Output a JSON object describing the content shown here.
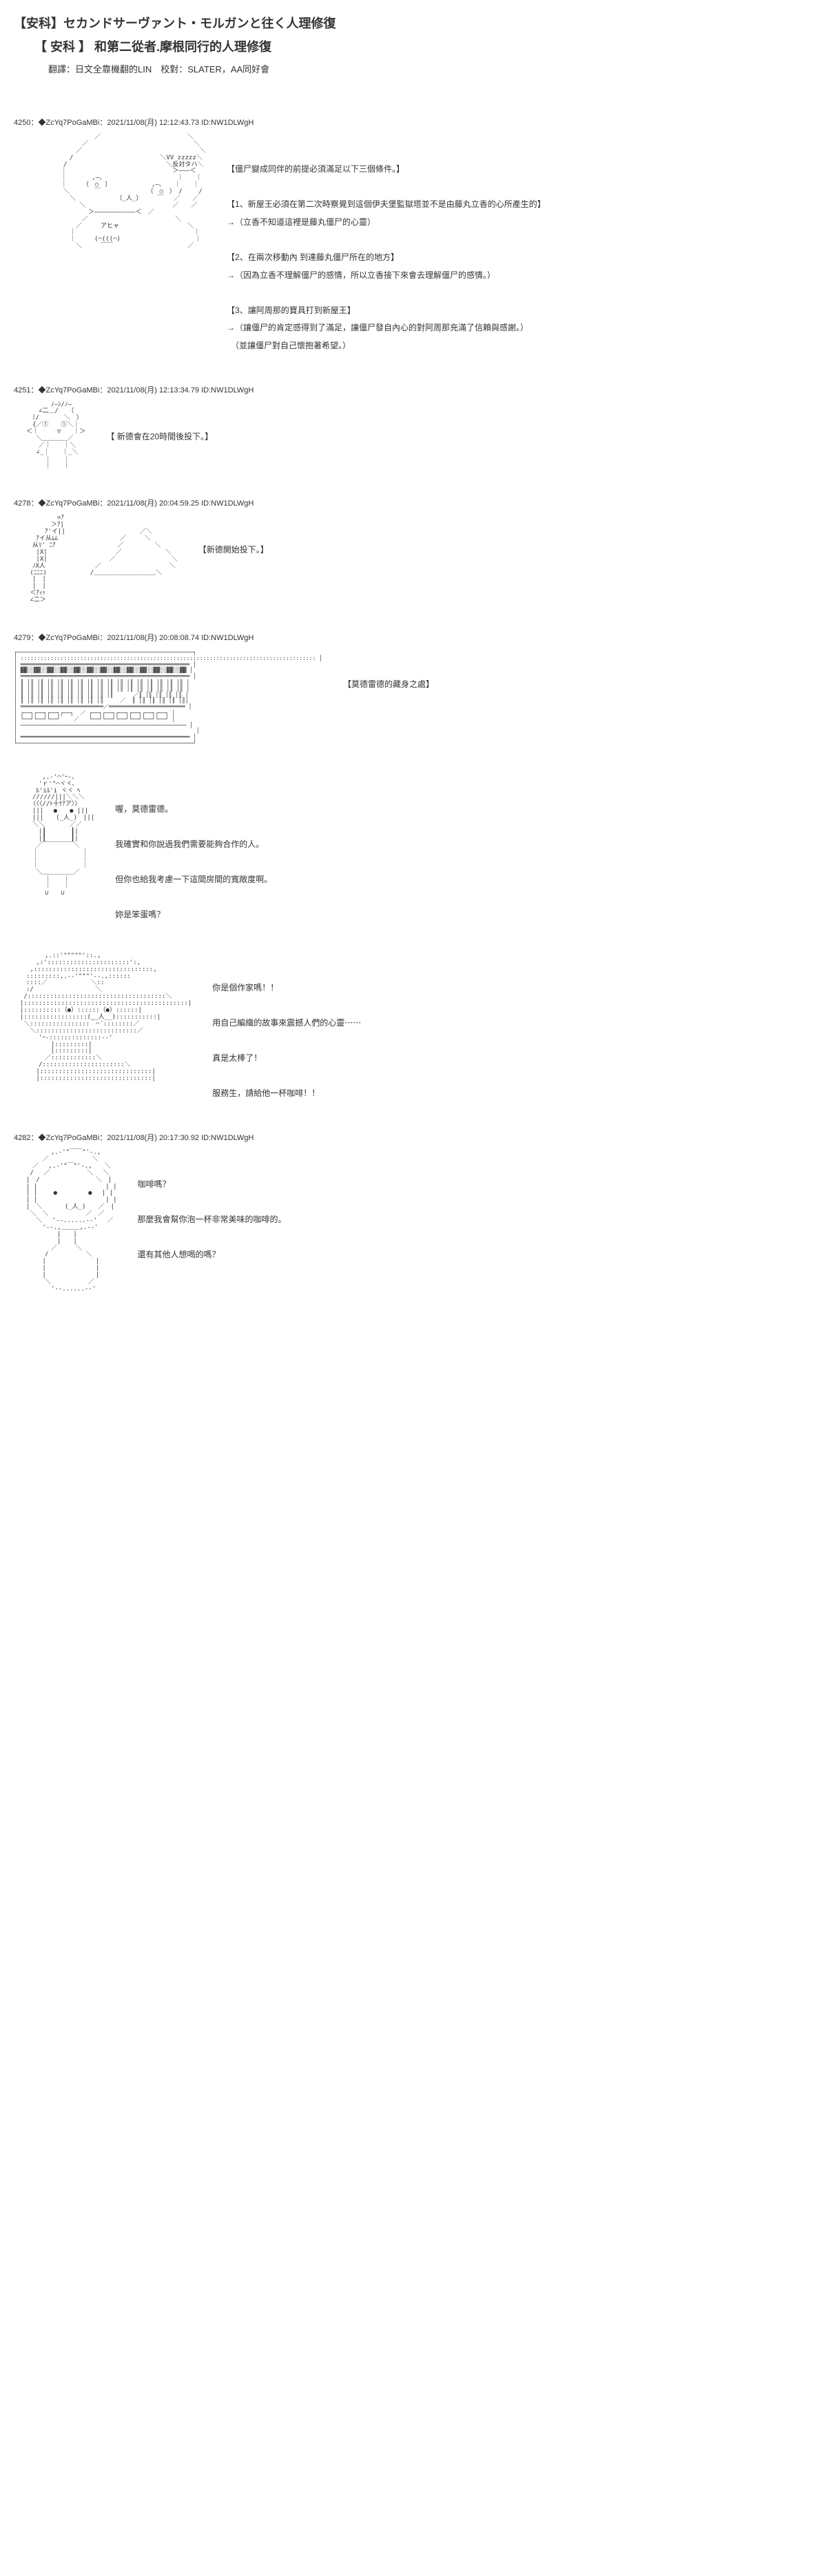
{
  "header": {
    "title_jp": "【安科】セカンドサーヴァント・モルガンと往く人理修復",
    "title_cn": "【 安科 】 和第二從者.摩根同行的人理修復",
    "credits": "翻譯：日文全靠機翻的LIN　校對：SLATER，AA同好會"
  },
  "posts": [
    {
      "id": "4250",
      "trip": "◆ZcYq7PoGaMBi",
      "date": "2021/11/08(月) 12:12:43.73 ID:NW1DLWgH",
      "ascii_key": "sketch1",
      "text_lines": [
        "【僵尸變成同伴的前提必須滿足以下三個條件。】",
        "",
        "【1、新屋王必須在第二次時察覺到這個伊夫堡監獄塔並不是由藤丸立香的心所產生的】",
        "→（立香不知道這裡是藤丸僵尸的心靈）",
        "",
        "【2、在兩次移動內 到達藤丸僵尸所在的地方】",
        "→（因為立香不理解僵尸的感情，所以立香接下來會去理解僵尸的感情。）",
        "",
        "【3、讓阿周那的寶具打到新屋王】",
        "→（讓僵尸的肯定感得到了滿足，讓僵尸發自內心的對阿周那充滿了信賴與感謝。）",
        "　（並讓僵尸對自己懷抱著希望。）"
      ]
    },
    {
      "id": "4251",
      "trip": "◆ZcYq7PoGaMBi",
      "date": "2021/11/08(月) 12:13:34.79 ID:NW1DLWgH",
      "ascii_key": "sketch2",
      "text_lines": [
        "【 新德會在20時間後投下。】"
      ]
    },
    {
      "id": "4278",
      "trip": "◆ZcYq7PoGaMBi",
      "date": "2021/11/08(月) 20:04:59.25 ID:NW1DLWgH",
      "ascii_key": "sketch3",
      "text_lines": [
        "【新德開始投下。】"
      ]
    },
    {
      "id": "4279",
      "trip": "◆ZcYq7PoGaMBi",
      "date": "2021/11/08(月) 20:08:08.74 ID:NW1DLWgH",
      "ascii_key": "building",
      "text_lines": [
        "【莫德雷德的藏身之處】"
      ],
      "wide": true
    },
    {
      "id": "",
      "trip": "",
      "date": "",
      "ascii_key": "chibi",
      "text_lines": [
        "喔，莫德雷德。",
        "",
        "我確實和你說過我們需要能夠合作的人。",
        "",
        "但你也給我考慮一下這間房間的寬敞度啊。",
        "",
        "妳是笨蛋嗎？"
      ]
    },
    {
      "id": "",
      "trip": "",
      "date": "",
      "ascii_key": "hat",
      "text_lines": [
        "你是個作家嗎！！",
        "",
        "用自己編織的故事來震撼人們的心靈⋯⋯",
        "",
        "真是太棒了！",
        "",
        "服務生，請給他一杯咖啡！！"
      ]
    },
    {
      "id": "4282",
      "trip": "◆ZcYq7PoGaMBi",
      "date": "2021/11/08(月) 20:17:30.92 ID:NW1DLWgH",
      "ascii_key": "maid",
      "text_lines": [
        "咖啡嗎？",
        "",
        "那麼我會幫你泡一杯非常美味的咖啡的。",
        "",
        "還有其他人想喝的嗎？"
      ]
    }
  ],
  "ascii": {
    "sketch1": "　　　　　　　　　　　　　／　　　　　　　　　　　　　　＼\n　　　　　　　　　　　／　　　　　　　　　　　　　　　　　＼\n　　　　　　　　　　／　　　　　　　　　　　　　　　　　　　＼\n　　　　　　　　　/　　　　　　　　　　　　　　＼VV zzzzz＼\n　　　　　　　　/　　　　　　　　　　　　　　　　＼反対タハ＼\n　　　　　　　 ｜　　　　　　　　　　　　　　　　　＞―――＜\n　　　　　　　 ｜　　　　,―、　　　　　　　　　　　　｜　　｜\n　　　　　　　 ｜　　　（　○　）　　　　　　　,―、　　｜　　｜\n　　　　　　　　＼　　　　￣　　　　　　　　（　○　）　/　　 /\n　　　　　　　　　＼　　　　　　　（_人_）　　　￣　 ／　　／\n　　　　　　　　　　 ＼　　　　　　　　　　　　　　／　　／\n　　　　　　　　　　　　＞―――――――――――＜　／\n　　　　　　　　　　　／　　　　　　　　　　　　　　＼\n　　　　　　　　　　／　　　アヒャ　　　　　　　　　　　＼\n　　　　　　　　　｜　　　　　　　　　　　　　　　　　　　｜\n　　　　　　　　　｜　　　(⌒(((⌒)　　　　　　　　　　　　｜\n　　　　　　　　　　＼　　　￣￣　　　　　　　　　　　　／",
    "sketch2": "　　　　　　ﾉ―ｼ/ﾉ―\n　　　　∠二＿/　　（\n　　　ﾐ/　　　　＼　）\n　　　{／①　　①＼｜\n　　＜｜　　　▽　　｜＞\n　　　 ＼＿＿＿＿／\n　　　　／｜　　｜＼\n　　　 ∠_｜　　｜_＼\n　　　　　｜　　｜\n　　　　　｜　　｜",
    "sketch3": "　　　　　　　>ｱ\n　　　　　　＞ｱ|\n　　　　　ｱ'イ||　　　　　　　　　　　　／＼\n　　　 ｱイ从ﾑﾑ　　　　　　　　　　／　　　＼\n　　　从ﾘ' ﾆｱ　　　　　　　　　　／　　　　　＼\n　　　 |X|　　　　　　　　　　　／　　　　　　　＼\n　　　 |X|　　　　　　　　　　／　　　　　　　　　＼\n　　　ﾉX人　　　　　　　　／　　　　　　　　　　　＼\n　　 (ﾆﾆﾆ)　　　　　　　/＿＿＿＿＿＿＿＿＿＿＼\n　　　|　|\n　　　|　|\n　　 ＜ｱｨｯ\n　　 ∠二＞",
    "building": "┌─────────────────────────────────────────────────────┐\n│ ::::::::::::::::::::::::::::::::::::::::::::::::::::::::::::::::::::::::::::::::::::::::: │\n│ ═══════════════════════════════════════════════════ │\n│ ▓▓░░▓▓░░▓▓░░▓▓░░▓▓░░▓▓░░▓▓░░▓▓░░▓▓░░▓▓░░▓▓░░▓▓░░▓▓ │\n│ ═══════════════════════════════════════════════════ │\n│ ║ │║ │║ │║ │║ │║ │║ │║ │║ │║ │║ │║ │║ │║ │║ │║ │║ │\n│ ║ │║ │║ │║ │║ │║ │║ │║ │║ │║ │║ │║ │║ │║ │║ │║ │║ │\n│ ║ │║ │║ │║ │║ │║ │║ │║ │║ │║      ／║ │║ │║ │║ │║ │\n│ ║ │║ │║ │║ │║ │║ │║ │║ │║     ／  ║ │║ │║ │║ │║ │║│\n│ ═════════════════════════／═══════════════════════ │\n│ ┌──┐┌──┐┌──┐┌──┐  ／ ┌──┐┌──┐┌──┐┌──┐┌──┐┌──┐ │\n│ └──┘└──┘└──┘    ／   └──┘└──┘└──┘└──┘└──┘└──┘ │\n│ ────────────────────────────────────────────────── │\n│                                                      │\n│ ═══════════════════════════════════════════════════ │\n└─────────────────────────────────────────────────────┘",
    "chibi": "　　　　 ,.-'⌒'ｰ-、\n　　　　'ｒ'\"⌒ヾヾ､\n　　　 ﾙ'iﾙ'i ヾヾ ﾍ\n　　　//////|||＼＼＼\n　　 〈〈〈//ﾄ十ﾅｱア〉〉\n　　　|||　 ●　　● |||\n　　　|||　　(_人_)　|||\n　　　＼＼　　　　／／\n　　　　|┃　　　　┃|\n　　　　|┃　　　　┃|\n　　　 ／￣￣￣￣￣＼\n　　　｜　　　　　　　｜\n　　　｜　　　　　　　｜\n　　　｜　　　　　　　｜\n　　　 ＼＿＿＿＿＿／\n　　　　　｜　　｜\n　　　　　｜　　｜\n　　　　　∪　　∪",
    "hat": "　　　　　,.::'\"\"\"\"\"'::.,\n　　　 ,:'::::::::::::::::::::::':,\n　　 ,::::::::::::::::::::::::::::::::,\n　　:::::::::,.-‐'\"\"\"'‐-.,::::::\n　　::::／　　　　　　　＼::\n　　:/　　　　　　　　　　＼\n　 /:::::::::::::::::::::::::::::::::::::＼\n　|::::::::::::::::::::::::::::::::::::::::::::|\n　|::::::::::（●）::::::（●）::::::|\n　|:::::::::::::::::(__人__):::::::::::|\n　 ＼::::::::::::::::｀⌒´::::::::／\n　　 ＼:::::::::::::::::::::::::::／\n　　　　'ｰ-::::::::::::::-‐'\n　　　　　　|:::::::::|\n　　　　　　|:::::::::|\n　　　　　／::::::::::::＼\n　　　　/::::::::::::::::::::::＼\n　　　 |::::::::::::::::::::::::::::::|\n　　　 |::::::::::::::::::::::::::::::|",
    "maid": "　　　　　　,.-'\"￣￣\"'-.,\n　　　　 ／　　　　　　　＼\n　　　／　 ,.-'\"￣\"'-.,　　＼\n　　 /　 ／　　　　　　＼　 ＼\n　　|　/　　　　　　　　　＼　|\n　　| |　　　　　　　　　　　| |\n　　| |　　 ●　　　　　●　 | |\n　　| |　　　　　　　　　　　| |\n　　|　＼　　　 (_人_)　　／　|\n　　 ＼　＼　　　　　　／　／\n　　　 ＼　 '‐-......-‐'　 ／\n　　　　 '‐-.,＿＿＿,.-‐'\n　　　　　　　|　　|\n　　　　　　　|　　|\n　　　　　　／　　　＼\n　　　　　/　　　　　　＼\n　　　　 |　　　　　　　　|\n　　　　 |　　　　　　　　|\n　　　　 |　　　　　　　　|\n　　　　　＼　　　　　　／\n　　　　　　'‐-......-‐'"
  }
}
